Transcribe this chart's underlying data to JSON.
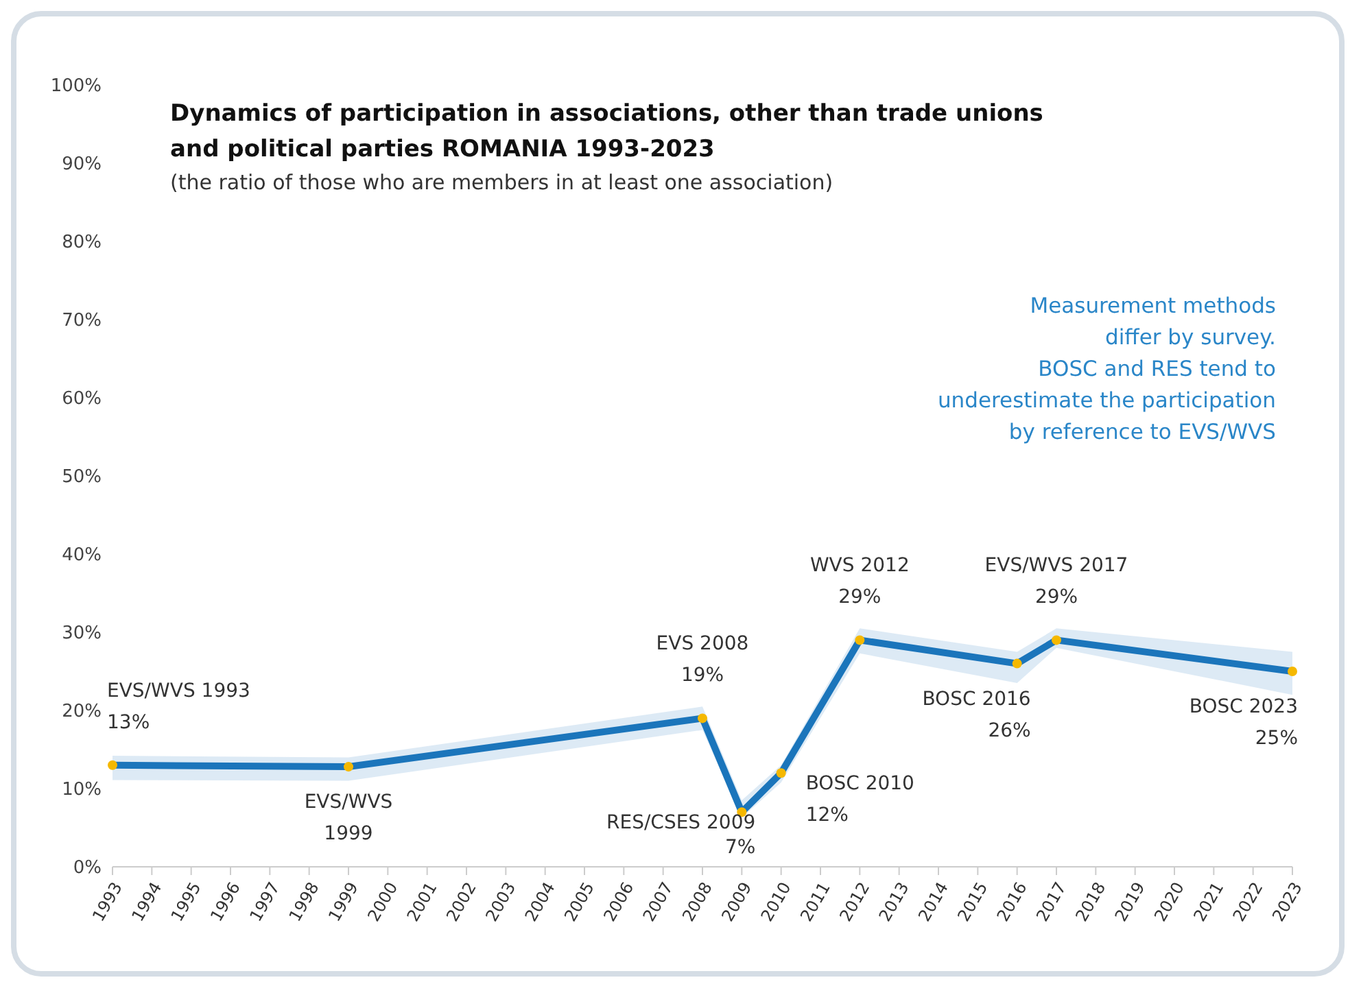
{
  "chart_data": {
    "type": "line",
    "title": "Dynamics of participation in associations, other than trade unions\nand political parties ROMANIA 1993-2023",
    "subtitle": "(the ratio of those who are members in at least one association)",
    "categories": [
      "1993",
      "1994",
      "1995",
      "1996",
      "1997",
      "1998",
      "1999",
      "2000",
      "2001",
      "2002",
      "2003",
      "2004",
      "2005",
      "2006",
      "2007",
      "2008",
      "2009",
      "2010",
      "2011",
      "2012",
      "2013",
      "2014",
      "2015",
      "2016",
      "2017",
      "2018",
      "2019",
      "2020",
      "2021",
      "2022",
      "2023"
    ],
    "series": [
      {
        "color": "#1b75bb",
        "values": [
          13,
          null,
          null,
          null,
          null,
          null,
          12.8,
          null,
          null,
          null,
          null,
          null,
          null,
          null,
          null,
          19,
          7,
          12,
          null,
          29,
          null,
          null,
          null,
          26,
          29,
          null,
          null,
          null,
          null,
          null,
          25
        ],
        "lower": [
          11.1,
          null,
          null,
          null,
          null,
          null,
          11,
          null,
          null,
          null,
          null,
          null,
          null,
          null,
          null,
          17.5,
          6.3,
          10.8,
          null,
          27.3,
          null,
          null,
          null,
          23.5,
          28,
          null,
          null,
          null,
          null,
          null,
          22
        ],
        "upper": [
          14.2,
          null,
          null,
          null,
          null,
          null,
          14,
          null,
          null,
          null,
          null,
          null,
          null,
          null,
          null,
          20.5,
          8.5,
          13,
          null,
          30.5,
          null,
          null,
          null,
          27.5,
          30.5,
          null,
          null,
          null,
          null,
          null,
          27.5
        ]
      }
    ],
    "ylim": [
      0,
      100
    ],
    "yticks": [
      {
        "value": 0,
        "label": "0%"
      },
      {
        "value": 10,
        "label": "10%"
      },
      {
        "value": 20,
        "label": "20%"
      },
      {
        "value": 30,
        "label": "30%"
      },
      {
        "value": 40,
        "label": "40%"
      },
      {
        "value": 50,
        "label": "50%"
      },
      {
        "value": 60,
        "label": "60%"
      },
      {
        "value": 70,
        "label": "70%"
      },
      {
        "value": 80,
        "label": "80%"
      },
      {
        "value": 90,
        "label": "90%"
      },
      {
        "value": 100,
        "label": "100%"
      }
    ],
    "grid": false,
    "legend": false,
    "marker": "circle",
    "line_style": "solid",
    "annotations": [
      {
        "text": "EVS/WVS 1993\n13%",
        "x": "1993",
        "y": 13
      },
      {
        "text": "EVS/WVS\n1999",
        "x": "1999",
        "y": 12.8
      },
      {
        "text": "EVS 2008\n19%",
        "x": "2008",
        "y": 19
      },
      {
        "text": "RES/CSES 2009\n7%",
        "x": "2009",
        "y": 7
      },
      {
        "text": "BOSC 2010\n12%",
        "x": "2010",
        "y": 12
      },
      {
        "text": "WVS 2012\n29%",
        "x": "2012",
        "y": 29
      },
      {
        "text": "BOSC 2016\n26%",
        "x": "2016",
        "y": 26
      },
      {
        "text": "EVS/WVS 2017\n29%",
        "x": "2017",
        "y": 29
      },
      {
        "text": "BOSC 2023\n25%",
        "x": "2023",
        "y": 25
      },
      "Measurement methods\ndiffer by survey.\nBOSC and RES tend to\nunderestimate the participation\nby reference to EVS/WVS"
    ]
  }
}
